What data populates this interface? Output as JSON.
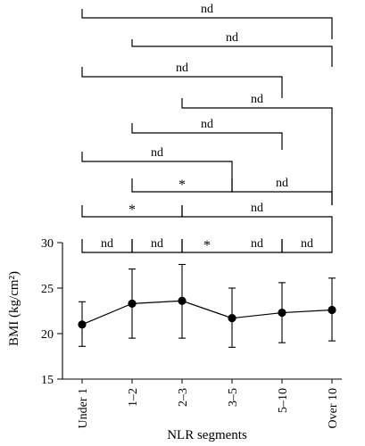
{
  "chart_data": {
    "type": "line",
    "title": "",
    "xlabel": "NLR segments",
    "ylabel": "BMI (kg/cm²)",
    "categories": [
      "Under 1",
      "1–2",
      "2–3",
      "3–5",
      "5–10",
      "Over 10"
    ],
    "ylim": [
      15,
      30
    ],
    "yticks": [
      15,
      20,
      25,
      30
    ],
    "grid": false,
    "series": [
      {
        "values": [
          21.0,
          23.3,
          23.6,
          21.7,
          22.3,
          22.6
        ],
        "error_low": [
          18.6,
          19.5,
          19.5,
          18.5,
          19.0,
          19.2
        ],
        "error_high": [
          23.5,
          27.1,
          27.6,
          25.0,
          25.6,
          26.1
        ]
      }
    ],
    "significance_brackets": [
      {
        "from": 0,
        "to": 1,
        "label": "nd"
      },
      {
        "from": 1,
        "to": 2,
        "label": "nd"
      },
      {
        "from": 2,
        "to": 3,
        "label": "*"
      },
      {
        "from": 3,
        "to": 4,
        "label": "nd"
      },
      {
        "from": 4,
        "to": 5,
        "label": "nd"
      },
      {
        "from": 0,
        "to": 2,
        "label": "*"
      },
      {
        "from": 2,
        "to": 5,
        "label": "nd"
      },
      {
        "from": 1,
        "to": 3,
        "label": "*"
      },
      {
        "from": 3,
        "to": 5,
        "label": "nd"
      },
      {
        "from": 0,
        "to": 3,
        "label": "nd"
      },
      {
        "from": 1,
        "to": 4,
        "label": "nd"
      },
      {
        "from": 2,
        "to": 5,
        "label": "nd"
      },
      {
        "from": 0,
        "to": 4,
        "label": "nd"
      },
      {
        "from": 1,
        "to": 5,
        "label": "nd"
      },
      {
        "from": 0,
        "to": 5,
        "label": "nd"
      }
    ]
  }
}
